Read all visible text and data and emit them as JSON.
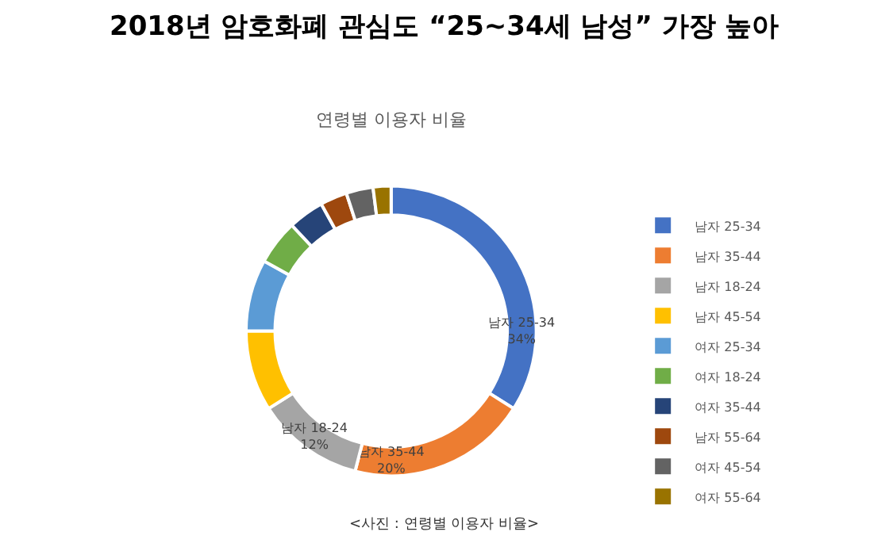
{
  "chart_data": {
    "type": "donut",
    "title": "2018년 암호화폐 관심도 “25~34세 남성” 가장 높아",
    "subtitle": "연령별 이용자 비율",
    "categories": [
      "남자 25-34",
      "남자 35-44",
      "남자 18-24",
      "남자 45-54",
      "여자 25-34",
      "여자 18-24",
      "여자 35-44",
      "남자 55-64",
      "여자 45-54",
      "여자 55-64"
    ],
    "values": [
      34,
      20,
      12,
      9,
      8,
      5,
      4,
      3,
      3,
      2
    ],
    "value_labels": [
      "34%",
      "20%",
      "12%",
      null,
      null,
      null,
      null,
      null,
      null,
      null
    ],
    "colors": [
      "#4472c4",
      "#ed7d31",
      "#a5a5a5",
      "#ffc000",
      "#5b9bd5",
      "#70ad47",
      "#264478",
      "#9e480e",
      "#636363",
      "#997300"
    ],
    "legend": "right",
    "annotations": [
      "<사진 : 연령별 이용자 비율>"
    ]
  }
}
